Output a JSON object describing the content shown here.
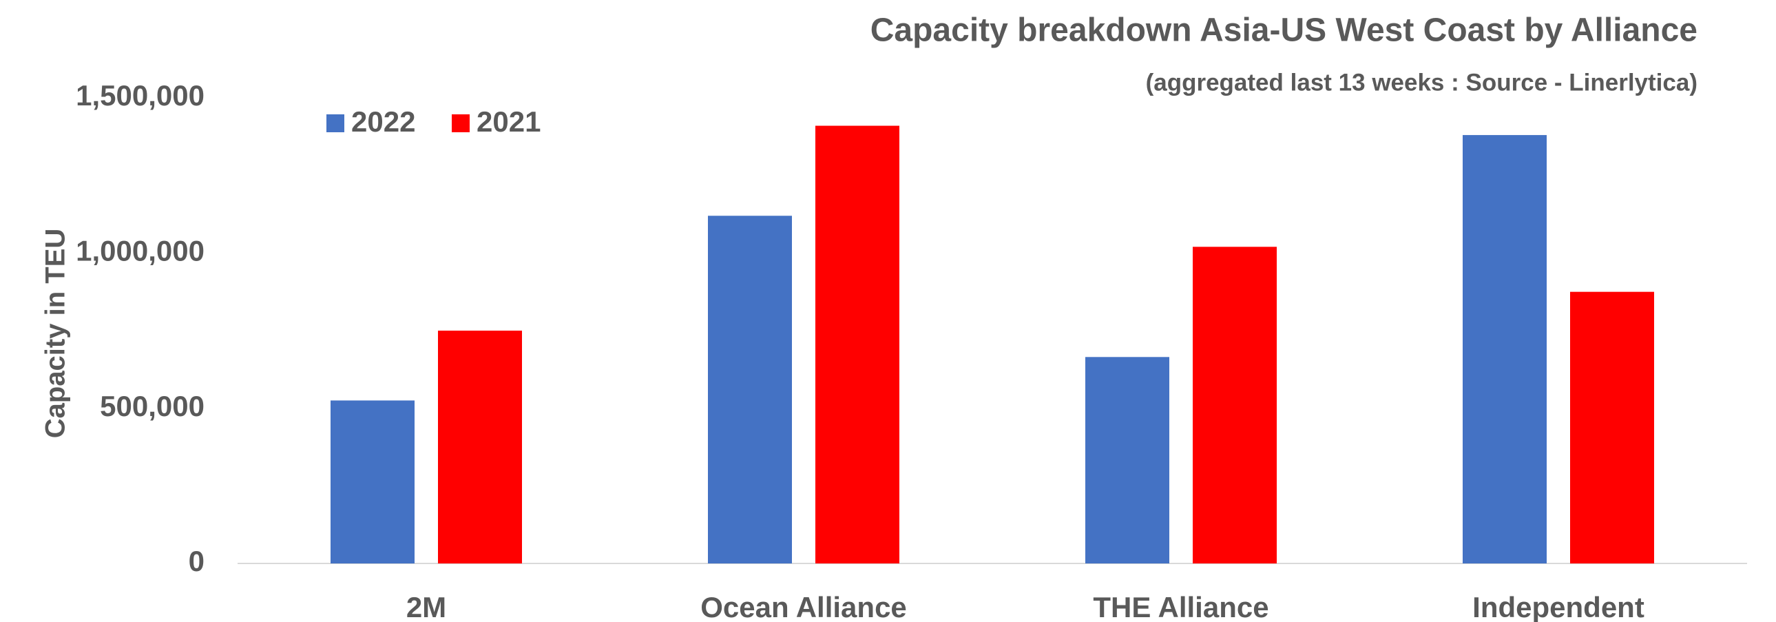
{
  "chart_data": {
    "type": "bar",
    "title": "Capacity breakdown Asia-US West Coast by Alliance",
    "subtitle": "(aggregated last 13 weeks : Source - Linerlytica)",
    "y_label": "Capacity in TEU",
    "categories": [
      "2M",
      "Ocean Alliance",
      "THE Alliance",
      "Independent"
    ],
    "series": [
      {
        "name": "2022",
        "color": "#4472c4",
        "values": [
          525000,
          1120000,
          665000,
          1380000
        ]
      },
      {
        "name": "2021",
        "color": "#ff0000",
        "values": [
          750000,
          1410000,
          1020000,
          875000
        ]
      }
    ],
    "ylim": [
      0,
      1500000
    ],
    "yticks": [
      0,
      {
        "value": 500000,
        "label": "500,000"
      },
      {
        "value": 1000000,
        "label": "1,000,000"
      },
      {
        "value": 1500000,
        "label": "1,500,000"
      }
    ],
    "grid": false,
    "legend": "top-left"
  }
}
